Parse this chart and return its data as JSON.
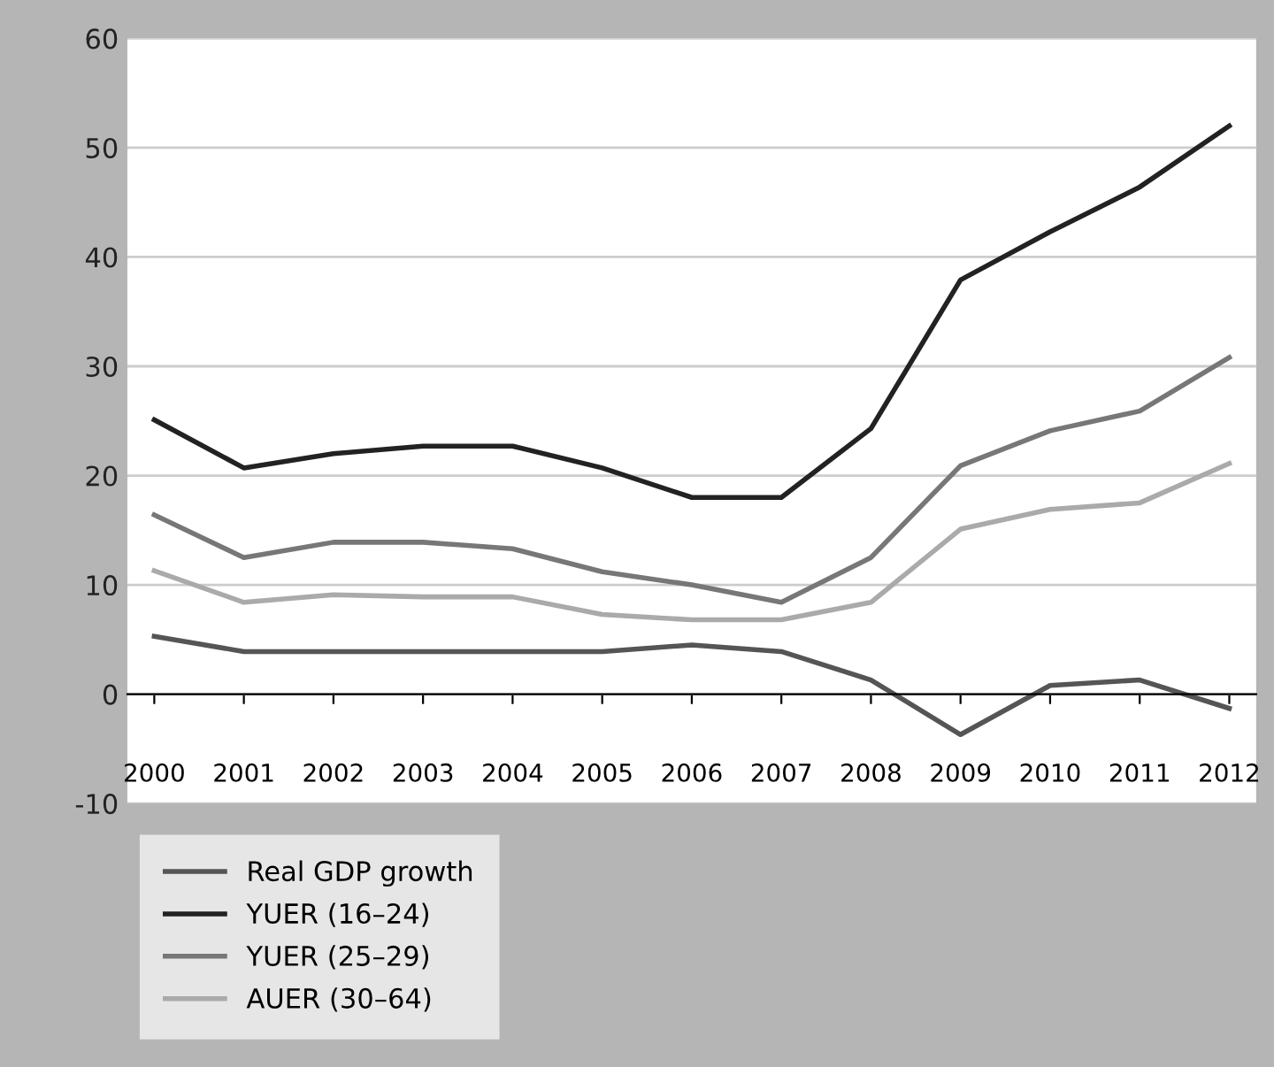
{
  "chart_data": {
    "type": "line",
    "categories": [
      "2000",
      "2001",
      "2002",
      "2003",
      "2004",
      "2005",
      "2006",
      "2007",
      "2008",
      "2009",
      "2010",
      "2011",
      "2012"
    ],
    "series": [
      {
        "name": "Real GDP growth",
        "color": "#555555",
        "values": [
          5.3,
          3.9,
          3.9,
          3.9,
          3.9,
          3.9,
          4.5,
          3.9,
          1.3,
          -3.7,
          0.8,
          1.3,
          -1.3
        ]
      },
      {
        "name": "YUER (16–24)",
        "color": "#222222",
        "values": [
          25.1,
          20.7,
          22,
          22.7,
          22.7,
          20.7,
          18,
          18,
          24.3,
          37.9,
          42.3,
          46.4,
          52
        ]
      },
      {
        "name": "YUER (25–29)",
        "color": "#777777",
        "values": [
          16.4,
          12.5,
          13.9,
          13.9,
          13.3,
          11.2,
          10,
          8.4,
          12.5,
          20.9,
          24.1,
          25.9,
          30.8
        ]
      },
      {
        "name": "AUER (30–64)",
        "color": "#aaaaaa",
        "values": [
          11.3,
          8.4,
          9.1,
          8.9,
          8.9,
          7.3,
          6.8,
          6.8,
          8.4,
          15.1,
          16.9,
          17.5,
          21.1
        ]
      }
    ],
    "ylim": [
      -10,
      60
    ],
    "yticks": [
      -10,
      0,
      10,
      20,
      30,
      40,
      50,
      60
    ],
    "grid": "y",
    "legend": "bottom left",
    "marker": "none",
    "line_style": "solid"
  }
}
